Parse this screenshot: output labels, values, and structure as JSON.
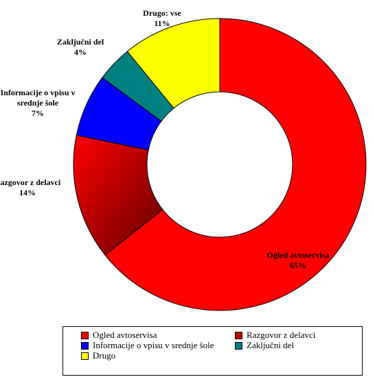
{
  "chart_data": {
    "type": "pie",
    "donut": true,
    "slices": [
      {
        "name": "Ogled avtoservisa",
        "label_lines": [
          "Ogled avtoservisa",
          "65%"
        ],
        "value": 65,
        "color": "#ff0000",
        "gradient": false
      },
      {
        "name": "Razgovor z delavci",
        "label_lines": [
          "Razgovor z delavci",
          "14%"
        ],
        "value": 14,
        "color": "#c00000",
        "gradient": true
      },
      {
        "name": "Informacije o vpisu v srednje šole",
        "label_lines": [
          "Informacije o vpisu v",
          "srednje šole",
          "7%"
        ],
        "value": 7,
        "color": "#0000ff",
        "gradient": false
      },
      {
        "name": "Zaključni del",
        "label_lines": [
          "Zaključni del",
          "4%"
        ],
        "value": 4,
        "color": "#008080",
        "gradient": false
      },
      {
        "name": "Drugo",
        "label_lines": [
          "Drugo: vse",
          "11%"
        ],
        "value": 11,
        "color": "#ffff00",
        "gradient": false
      }
    ],
    "legend": {
      "placement": "bottom",
      "items": [
        "Ogled avtoservisa",
        "Razgovor z delavci",
        "Informacije o vpisu v srednje šole",
        "Zaključni del",
        "Drugo"
      ]
    }
  }
}
